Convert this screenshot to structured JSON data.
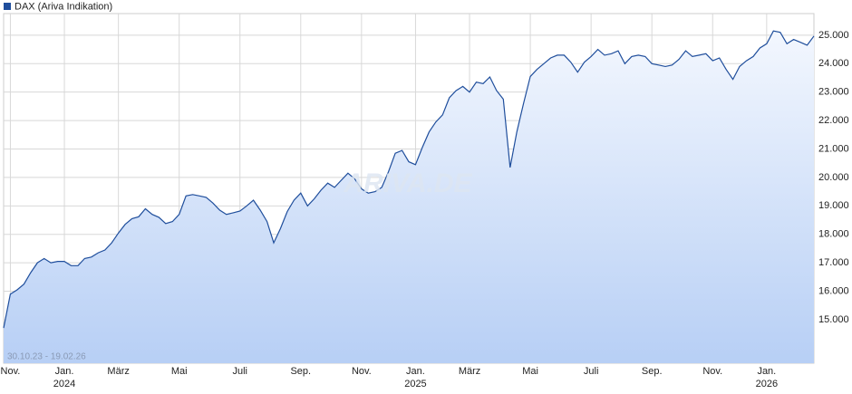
{
  "chart_data": {
    "type": "area-line",
    "date_range": "30.10.23 - 19.02.26",
    "watermark": "ARIVA.DE",
    "categories": [
      null,
      "Nov.",
      null,
      null,
      null,
      null,
      null,
      null,
      null,
      "Jan.",
      null,
      null,
      null,
      null,
      null,
      null,
      null,
      "März",
      null,
      null,
      null,
      null,
      null,
      null,
      null,
      null,
      "Mai",
      null,
      null,
      null,
      null,
      null,
      null,
      null,
      null,
      "Juli",
      null,
      null,
      null,
      null,
      null,
      null,
      null,
      null,
      "Sep.",
      null,
      null,
      null,
      null,
      null,
      null,
      null,
      null,
      "Nov.",
      null,
      null,
      null,
      null,
      null,
      null,
      null,
      "Jan.",
      null,
      null,
      null,
      null,
      null,
      null,
      null,
      "März",
      null,
      null,
      null,
      null,
      null,
      null,
      null,
      null,
      "Mai",
      null,
      null,
      null,
      null,
      null,
      null,
      null,
      null,
      "Juli",
      null,
      null,
      null,
      null,
      null,
      null,
      null,
      null,
      "Sep.",
      null,
      null,
      null,
      null,
      null,
      null,
      null,
      null,
      "Nov.",
      null,
      null,
      null,
      null,
      null,
      null,
      null,
      "Jan.",
      null,
      null,
      null,
      null,
      null,
      null,
      null
    ],
    "year_labels": [
      null,
      null,
      null,
      null,
      null,
      null,
      null,
      null,
      null,
      "2024",
      null,
      null,
      null,
      null,
      null,
      null,
      null,
      null,
      null,
      null,
      null,
      null,
      null,
      null,
      null,
      null,
      null,
      null,
      null,
      null,
      null,
      null,
      null,
      null,
      null,
      null,
      null,
      null,
      null,
      null,
      null,
      null,
      null,
      null,
      null,
      null,
      null,
      null,
      null,
      null,
      null,
      null,
      null,
      null,
      null,
      null,
      null,
      null,
      null,
      null,
      null,
      "2025",
      null,
      null,
      null,
      null,
      null,
      null,
      null,
      null,
      null,
      null,
      null,
      null,
      null,
      null,
      null,
      null,
      null,
      null,
      null,
      null,
      null,
      null,
      null,
      null,
      null,
      null,
      null,
      null,
      null,
      null,
      null,
      null,
      null,
      null,
      null,
      null,
      null,
      null,
      null,
      null,
      null,
      null,
      null,
      null,
      null,
      null,
      null,
      null,
      null,
      null,
      null,
      "2026",
      null,
      null,
      null,
      null,
      null,
      null,
      null
    ],
    "series": [
      {
        "name": "DAX (Ariva Indikation)",
        "color": "#1f4e9c",
        "values": [
          14710,
          15900,
          16050,
          16250,
          16650,
          17000,
          17150,
          17000,
          17050,
          17050,
          16900,
          16900,
          17150,
          17200,
          17350,
          17450,
          17700,
          18050,
          18350,
          18550,
          18620,
          18900,
          18700,
          18600,
          18380,
          18450,
          18700,
          19350,
          19400,
          19350,
          19300,
          19100,
          18850,
          18700,
          18760,
          18820,
          19000,
          19200,
          18850,
          18450,
          17700,
          18200,
          18800,
          19200,
          19450,
          19000,
          19250,
          19550,
          19800,
          19650,
          19900,
          20150,
          19950,
          19600,
          19450,
          19500,
          19650,
          20200,
          20850,
          20950,
          20550,
          20450,
          21050,
          21600,
          21950,
          22200,
          22800,
          23050,
          23200,
          23000,
          23350,
          23300,
          23530,
          23050,
          22750,
          20350,
          21600,
          22600,
          23550,
          23800,
          24000,
          24200,
          24300,
          24300,
          24050,
          23700,
          24050,
          24250,
          24500,
          24300,
          24350,
          24450,
          24000,
          24250,
          24300,
          24250,
          24000,
          23950,
          23900,
          23950,
          24150,
          24450,
          24250,
          24300,
          24350,
          24100,
          24200,
          23800,
          23450,
          23900,
          24100,
          24250,
          24550,
          24700,
          25150,
          25100,
          24700,
          24850,
          24750,
          24650,
          24970
        ]
      }
    ],
    "ylim": [
      13470,
      25760
    ],
    "yticks": [
      {
        "value": 15000,
        "label": "15.000"
      },
      {
        "value": 16000,
        "label": "16.000"
      },
      {
        "value": 17000,
        "label": "17.000"
      },
      {
        "value": 18000,
        "label": "18.000"
      },
      {
        "value": 19000,
        "label": "19.000"
      },
      {
        "value": 20000,
        "label": "20.000"
      },
      {
        "value": 21000,
        "label": "21.000"
      },
      {
        "value": 22000,
        "label": "22.000"
      },
      {
        "value": 23000,
        "label": "23.000"
      },
      {
        "value": 24000,
        "label": "24.000"
      },
      {
        "value": 25000,
        "label": "25.000"
      }
    ],
    "grid": true
  }
}
